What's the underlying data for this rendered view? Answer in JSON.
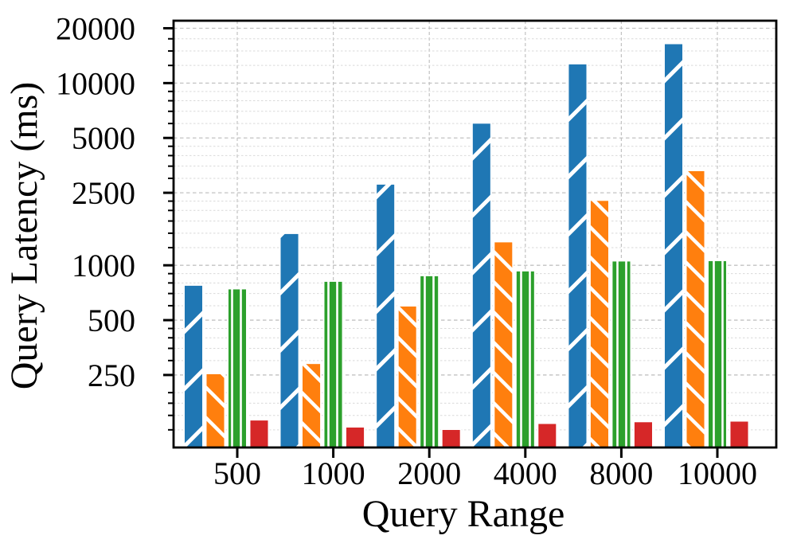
{
  "figure": {
    "background": "#ffffff"
  },
  "chart_data": {
    "type": "bar",
    "title": "",
    "xlabel": "Query Range",
    "ylabel": "Query Latency (ms)",
    "yscale": "log",
    "ylim": [
      100,
      22000
    ],
    "categories": [
      "500",
      "1000",
      "2000",
      "4000",
      "8000",
      "10000"
    ],
    "series": [
      {
        "name": "blue-hatched-slash",
        "color": "#1f77b4",
        "hatch": "/",
        "values": [
          780,
          1500,
          2800,
          6050,
          12800,
          16500
        ]
      },
      {
        "name": "orange-hatched-backslash",
        "color": "#ff7f0e",
        "hatch": "\\",
        "values": [
          255,
          290,
          600,
          1350,
          2280,
          3320
        ]
      },
      {
        "name": "green-hatched-vertical",
        "color": "#2ca02c",
        "hatch": "|",
        "values": [
          745,
          820,
          880,
          935,
          1060,
          1065
        ]
      },
      {
        "name": "red-solid",
        "color": "#d62728",
        "hatch": "",
        "values": [
          142,
          130,
          126,
          136,
          139,
          140
        ]
      }
    ],
    "y_major_ticks": {
      "values": [
        250,
        500,
        1000,
        2500,
        5000,
        10000,
        20000
      ],
      "labels": [
        "250",
        "500",
        "1000",
        "2500",
        "5000",
        "10000",
        "20000"
      ]
    },
    "y_minor_ticks": [
      125,
      150,
      175,
      200,
      300,
      350,
      400,
      450,
      600,
      700,
      800,
      900,
      1250,
      1500,
      1750,
      2000,
      2250,
      3000,
      3500,
      4000,
      4500,
      6000,
      7000,
      8000,
      9000,
      12500,
      15000,
      17500
    ],
    "grid": {
      "x_major": true,
      "y_major": true,
      "y_minor": true,
      "style": "dashed"
    },
    "legend": false,
    "hatch_color": "#ffffff",
    "bar_edge_color": "#ffffff",
    "axis_color": "#000000",
    "grid_major_color": "#c2c2c2",
    "grid_minor_color": "#d9d9d9"
  }
}
